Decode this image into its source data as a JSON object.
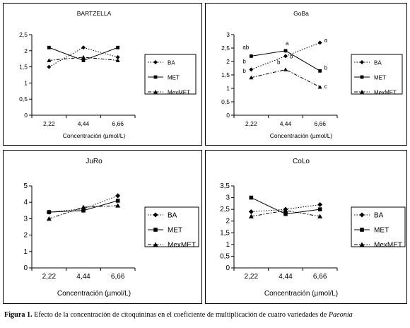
{
  "chart_data": [
    {
      "type": "line",
      "title": "BARTZELLA",
      "xlabel": "Concentración (µmol/L)",
      "ylabel": "",
      "categories": [
        "2,22",
        "4,44",
        "6,66"
      ],
      "ylim": [
        0,
        2.5
      ],
      "yticks": [
        "0",
        "0,5",
        "1",
        "1,5",
        "2",
        "2,5"
      ],
      "series": [
        {
          "name": "BA",
          "values": [
            1.5,
            2.1,
            1.8
          ],
          "marker": "diamond",
          "dash": "dotted"
        },
        {
          "name": "MET",
          "values": [
            2.1,
            1.7,
            2.1
          ],
          "marker": "square",
          "dash": "solid"
        },
        {
          "name": "MexMET",
          "values": [
            1.7,
            1.8,
            1.7
          ],
          "marker": "triangle",
          "dash": "dashdot"
        }
      ],
      "annotations": [],
      "legend": "right"
    },
    {
      "type": "line",
      "title": "GoBa",
      "xlabel": "Concentración (µmol/L)",
      "ylabel": "",
      "categories": [
        "2,22",
        "4,44",
        "6,66"
      ],
      "ylim": [
        0,
        3
      ],
      "yticks": [
        "0",
        "0,5",
        "1",
        "1,5",
        "2",
        "2,5",
        "3"
      ],
      "series": [
        {
          "name": "BA",
          "values": [
            1.7,
            2.2,
            2.7
          ],
          "marker": "diamond",
          "dash": "dotted"
        },
        {
          "name": "MET",
          "values": [
            2.2,
            2.4,
            1.65
          ],
          "marker": "square",
          "dash": "solid"
        },
        {
          "name": "MexMET",
          "values": [
            1.4,
            1.7,
            1.05
          ],
          "marker": "triangle",
          "dash": "dashdot"
        }
      ],
      "annotations": [
        {
          "text": "ab",
          "series": 1,
          "point": 0
        },
        {
          "text": "b",
          "series": 0,
          "point": 0
        },
        {
          "text": "b",
          "series": 2,
          "point": 0
        },
        {
          "text": "a",
          "series": 1,
          "point": 1
        },
        {
          "text": "b",
          "series": 0,
          "point": 1
        },
        {
          "text": "b",
          "series": 2,
          "point": 1
        },
        {
          "text": "a",
          "series": 0,
          "point": 2
        },
        {
          "text": "b",
          "series": 1,
          "point": 2
        },
        {
          "text": "c",
          "series": 2,
          "point": 2
        }
      ],
      "legend": "right"
    },
    {
      "type": "line",
      "title": "JuRo",
      "xlabel": "Concentración (µmol/L)",
      "ylabel": "",
      "categories": [
        "2,22",
        "4,44",
        "6,66"
      ],
      "ylim": [
        0,
        5
      ],
      "yticks": [
        "0",
        "1",
        "2",
        "3",
        "4",
        "5"
      ],
      "series": [
        {
          "name": "BA",
          "values": [
            3.4,
            3.6,
            4.4
          ],
          "marker": "diamond",
          "dash": "dotted"
        },
        {
          "name": "MET",
          "values": [
            3.4,
            3.5,
            4.1
          ],
          "marker": "square",
          "dash": "solid"
        },
        {
          "name": "MexMET",
          "values": [
            3.0,
            3.7,
            3.8
          ],
          "marker": "triangle",
          "dash": "dashdot"
        }
      ],
      "annotations": [],
      "legend": "right"
    },
    {
      "type": "line",
      "title": "CoLo",
      "xlabel": "Concentración (µmol/L)",
      "ylabel": "",
      "categories": [
        "2,22",
        "4,44",
        "6,66"
      ],
      "ylim": [
        0,
        3.5
      ],
      "yticks": [
        "0",
        "0,5",
        "1",
        "1,5",
        "2",
        "2,5",
        "3",
        "3,5"
      ],
      "series": [
        {
          "name": "BA",
          "values": [
            2.4,
            2.5,
            2.7
          ],
          "marker": "diamond",
          "dash": "dotted"
        },
        {
          "name": "MET",
          "values": [
            3.0,
            2.3,
            2.5
          ],
          "marker": "square",
          "dash": "solid"
        },
        {
          "name": "MexMET",
          "values": [
            2.2,
            2.45,
            2.2
          ],
          "marker": "triangle",
          "dash": "dashdot"
        }
      ],
      "annotations": [],
      "legend": "right"
    }
  ],
  "caption": {
    "label": "Figura 1.",
    "text": " Efecto de la concentración de citoquininas en el coeficiente de multiplicación de cuatro variedades de ",
    "species": "Paeonia"
  }
}
